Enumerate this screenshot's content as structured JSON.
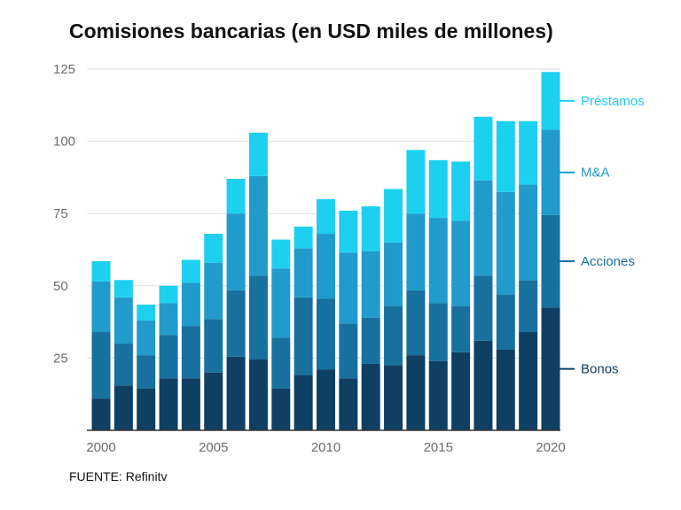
{
  "title": "Comisiones bancarias (en USD miles de millones)",
  "source": "FUENTE: Refinitv",
  "chart_data": {
    "type": "bar",
    "stacked": true,
    "title": "Comisiones bancarias (en USD miles de millones)",
    "xlabel": "",
    "ylabel": "",
    "ylim": [
      0,
      125
    ],
    "yticks": [
      25,
      50,
      75,
      100,
      125
    ],
    "xticks": [
      2000,
      2005,
      2010,
      2015,
      2020
    ],
    "grid": true,
    "legend_position": "right",
    "categories": [
      2000,
      2001,
      2002,
      2003,
      2004,
      2005,
      2006,
      2007,
      2008,
      2009,
      2010,
      2011,
      2012,
      2013,
      2014,
      2015,
      2016,
      2017,
      2018,
      2019,
      2020
    ],
    "series": [
      {
        "name": "Bonos",
        "color": "#0f3f62",
        "values": [
          11,
          15.5,
          14.5,
          18,
          18,
          20,
          25.5,
          24.5,
          14.5,
          19,
          21,
          18,
          23,
          22.5,
          26,
          24,
          27,
          31,
          28,
          34,
          42.5
        ]
      },
      {
        "name": "Acciones",
        "color": "#17709e",
        "values": [
          23,
          14.5,
          11.5,
          15,
          18,
          18.5,
          23,
          29,
          17.5,
          27,
          24.5,
          19,
          16,
          20.5,
          22.5,
          20,
          16,
          22.5,
          19,
          18,
          32
        ]
      },
      {
        "name": "M&A",
        "color": "#209bcb",
        "values": [
          17.5,
          16,
          12,
          11,
          15,
          19.5,
          26.5,
          34.5,
          24,
          17,
          22.5,
          24.5,
          23,
          22,
          26.5,
          29.5,
          29.5,
          33,
          35.5,
          33,
          29.5
        ]
      },
      {
        "name": "Préstamos",
        "color": "#1dd0f0",
        "values": [
          7,
          6,
          5.5,
          6,
          8,
          10,
          12,
          15,
          10,
          7.5,
          12,
          14.5,
          15.5,
          18.5,
          22,
          20,
          20.5,
          22,
          24.5,
          22,
          20
        ]
      }
    ]
  }
}
